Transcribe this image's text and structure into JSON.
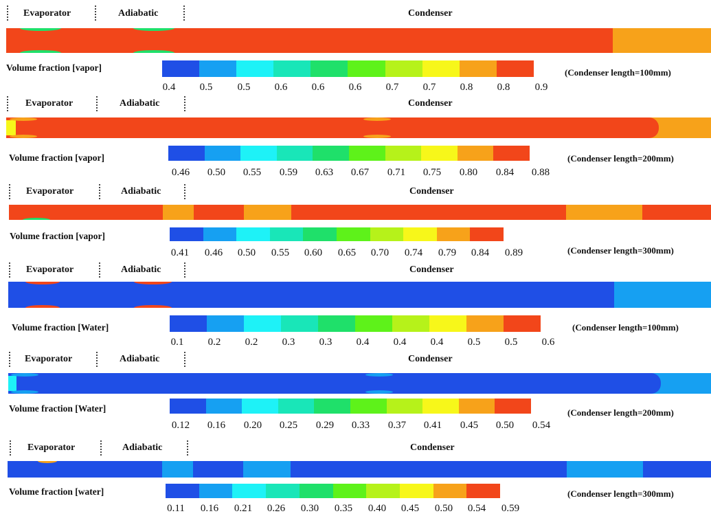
{
  "palette": [
    "#1f4fe6",
    "#16a0f2",
    "#1ef2f7",
    "#19e6b8",
    "#1fe06a",
    "#5ef21a",
    "#b6f21a",
    "#f7f71a",
    "#f7a21a",
    "#f2461a"
  ],
  "panels": [
    {
      "labels": {
        "evaporator": "Evaporator",
        "adiabatic": "Adiabatic",
        "condenser": "Condenser"
      },
      "field": "Volume fraction [vapor]",
      "condenser_note": "(Condenser length=100mm)",
      "ticks": [
        "0.4",
        "0.5",
        "0.5",
        "0.6",
        "0.6",
        "0.6",
        "0.7",
        "0.7",
        "0.8",
        "0.8",
        "0.9"
      ]
    },
    {
      "labels": {
        "evaporator": "Evaporator",
        "adiabatic": "Adiabatic",
        "condenser": "Condenser"
      },
      "field": "Volume fraction [vapor]",
      "condenser_note": "(Condenser length=200mm)",
      "ticks": [
        "0.46",
        "0.50",
        "0.55",
        "0.59",
        "0.63",
        "0.67",
        "0.71",
        "0.75",
        "0.80",
        "0.84",
        "0.88"
      ]
    },
    {
      "labels": {
        "evaporator": "Evaporator",
        "adiabatic": "Adiabatic",
        "condenser": "Condenser"
      },
      "field": "Volume fraction [vapor]",
      "condenser_note": "(Condenser length=300mm)",
      "ticks": [
        "0.41",
        "0.46",
        "0.50",
        "0.55",
        "0.60",
        "0.65",
        "0.70",
        "0.74",
        "0.79",
        "0.84",
        "0.89"
      ]
    },
    {
      "labels": {
        "evaporator": "Evaporator",
        "adiabatic": "Adiabatic",
        "condenser": "Condenser"
      },
      "field": "Volume fraction [Water]",
      "condenser_note": "(Condenser length=100mm)",
      "ticks": [
        "0.1",
        "0.2",
        "0.2",
        "0.3",
        "0.3",
        "0.4",
        "0.4",
        "0.4",
        "0.5",
        "0.5",
        "0.6"
      ]
    },
    {
      "labels": {
        "evaporator": "Evaporator",
        "adiabatic": "Adiabatic",
        "condenser": "Condenser"
      },
      "field": "Volume fraction [Water]",
      "condenser_note": "(Condenser length=200mm)",
      "ticks": [
        "0.12",
        "0.16",
        "0.20",
        "0.25",
        "0.29",
        "0.33",
        "0.37",
        "0.41",
        "0.45",
        "0.50",
        "0.54"
      ]
    },
    {
      "labels": {
        "evaporator": "Evaporator",
        "adiabatic": "Adiabatic",
        "condenser": "Condenser"
      },
      "field": "Volume fraction [water]",
      "condenser_note": "(Condenser length=300mm)",
      "ticks": [
        "0.11",
        "0.16",
        "0.21",
        "0.26",
        "0.30",
        "0.35",
        "0.40",
        "0.45",
        "0.50",
        "0.54",
        "0.59"
      ]
    }
  ]
}
